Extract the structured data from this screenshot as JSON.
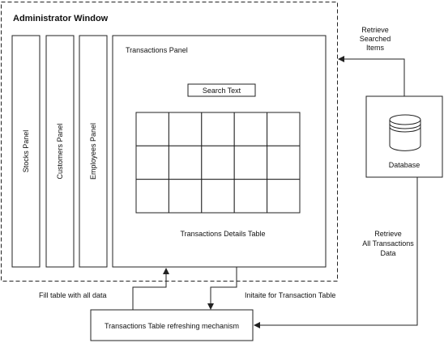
{
  "admin_window": {
    "title": "Administrator Window"
  },
  "side_panels": {
    "stocks": "Stocks Panel",
    "customers": "Customers Panel",
    "employees": "Employees Panel"
  },
  "transactions_panel": {
    "title": "Transactions Panel",
    "search_label": "Search Text",
    "table_label": "Transactions Details Table",
    "table_rows": 3,
    "table_cols": 5
  },
  "database": {
    "label": "Database"
  },
  "mechanism": {
    "label": "Transactions Table refreshing mechanism"
  },
  "edges": {
    "retrieve_searched": [
      "Retrieve",
      "Searched",
      "Items"
    ],
    "retrieve_all": [
      "Retrieve",
      "All Transactions",
      "Data"
    ],
    "fill_table": "Fill table with all data",
    "initiate": "Initaite for Transaction Table"
  }
}
